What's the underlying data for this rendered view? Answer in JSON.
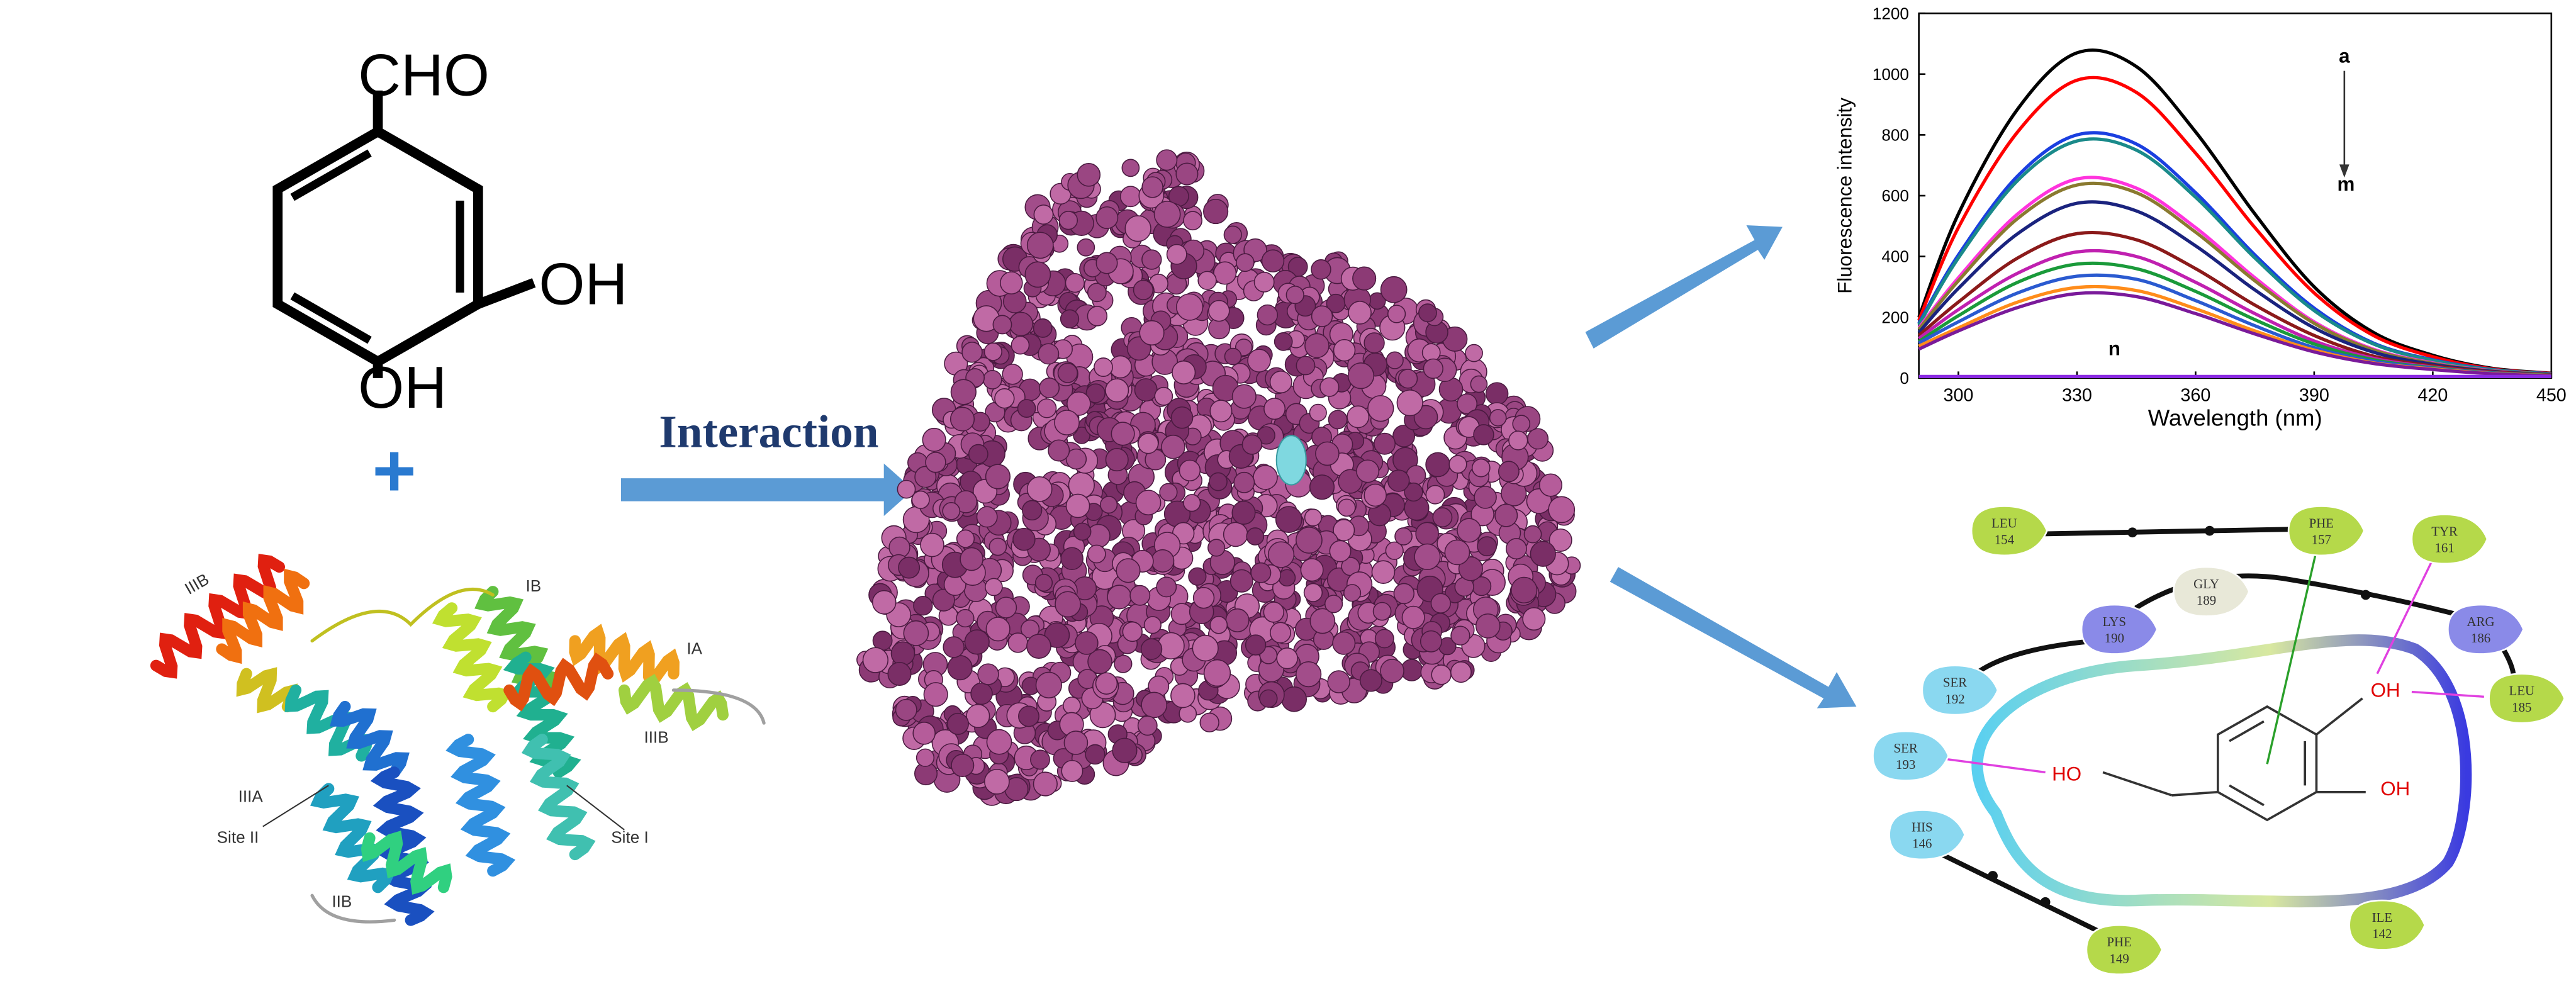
{
  "left_molecule": {
    "labels": [
      "CHO",
      "OH",
      "OH"
    ]
  },
  "plus": "+",
  "interaction_label": "Interaction",
  "albumin_labels": [
    "IIIB",
    "IB",
    "IA",
    "IIIA",
    "Site II",
    "Site I",
    "IIB",
    "IIIB"
  ],
  "chart_data": {
    "type": "line",
    "xlabel": "Wavelength (nm)",
    "ylabel": "Fluorescence intensity",
    "x": [
      290,
      300,
      315,
      330,
      345,
      360,
      375,
      390,
      405,
      420,
      435,
      450
    ],
    "xlim": [
      290,
      450
    ],
    "xticks": [
      300,
      330,
      360,
      390,
      420,
      450
    ],
    "ylim": [
      0,
      1200
    ],
    "yticks": [
      0,
      200,
      400,
      600,
      800,
      1000,
      1200
    ],
    "annotations": [
      "a",
      "m",
      "n"
    ],
    "series": [
      {
        "color": "#000000",
        "values": [
          200,
          540,
          885,
          1070,
          1025,
          810,
          540,
          300,
          150,
          75,
          32,
          16
        ]
      },
      {
        "color": "#ff0000",
        "values": [
          190,
          495,
          810,
          980,
          940,
          740,
          495,
          280,
          140,
          70,
          30,
          15
        ]
      },
      {
        "color": "#1a3fe0",
        "values": [
          180,
          405,
          665,
          800,
          770,
          610,
          405,
          230,
          115,
          60,
          28,
          14
        ]
      },
      {
        "color": "#1a8a8a",
        "values": [
          175,
          395,
          650,
          780,
          750,
          595,
          395,
          222,
          112,
          58,
          27,
          13
        ]
      },
      {
        "color": "#ff33dd",
        "values": [
          165,
          330,
          540,
          655,
          625,
          495,
          330,
          185,
          95,
          50,
          24,
          12
        ]
      },
      {
        "color": "#8a7a30",
        "values": [
          160,
          320,
          525,
          635,
          610,
          480,
          320,
          180,
          92,
          48,
          23,
          12
        ]
      },
      {
        "color": "#1a237e",
        "values": [
          150,
          295,
          475,
          575,
          550,
          435,
          290,
          165,
          85,
          45,
          22,
          11
        ]
      },
      {
        "color": "#8b1a1a",
        "values": [
          140,
          250,
          395,
          475,
          455,
          360,
          240,
          140,
          72,
          40,
          20,
          10
        ]
      },
      {
        "color": "#c020b0",
        "values": [
          130,
          225,
          345,
          415,
          400,
          315,
          212,
          122,
          65,
          36,
          18,
          9
        ]
      },
      {
        "color": "#1a9a3a",
        "values": [
          120,
          205,
          315,
          375,
          360,
          285,
          192,
          112,
          60,
          34,
          17,
          9
        ]
      },
      {
        "color": "#2a5ad0",
        "values": [
          115,
          185,
          280,
          335,
          325,
          255,
          172,
          100,
          55,
          32,
          16,
          8
        ]
      },
      {
        "color": "#ff8c1a",
        "values": [
          105,
          165,
          250,
          298,
          288,
          228,
          155,
          92,
          50,
          30,
          15,
          8
        ]
      },
      {
        "color": "#7a1a9a",
        "values": [
          95,
          155,
          232,
          278,
          268,
          212,
          145,
          86,
          48,
          28,
          14,
          7
        ]
      },
      {
        "color": "#8a2be2",
        "values": [
          5,
          5,
          5,
          5,
          5,
          5,
          5,
          5,
          5,
          5,
          5,
          5
        ]
      }
    ]
  },
  "interaction_diagram": {
    "residues": [
      {
        "name": "LEU",
        "number": 154,
        "color": "#b5d94a"
      },
      {
        "name": "PHE",
        "number": 157,
        "color": "#b5d94a"
      },
      {
        "name": "TYR",
        "number": 161,
        "color": "#b5d94a"
      },
      {
        "name": "GLY",
        "number": 189,
        "color": "#e8e8d8"
      },
      {
        "name": "LYS",
        "number": 190,
        "color": "#8a8ae8"
      },
      {
        "name": "ARG",
        "number": 186,
        "color": "#8a8ae8"
      },
      {
        "name": "SER",
        "number": 192,
        "color": "#8ad8f0"
      },
      {
        "name": "LEU",
        "number": 185,
        "color": "#b5d94a"
      },
      {
        "name": "SER",
        "number": 193,
        "color": "#8ad8f0"
      },
      {
        "name": "HIS",
        "number": 146,
        "color": "#8ad8f0"
      },
      {
        "name": "PHE",
        "number": 149,
        "color": "#b5d94a"
      },
      {
        "name": "ILE",
        "number": 142,
        "color": "#b5d94a"
      }
    ],
    "ligand_labels": [
      "OH",
      "OH",
      "HO"
    ]
  }
}
